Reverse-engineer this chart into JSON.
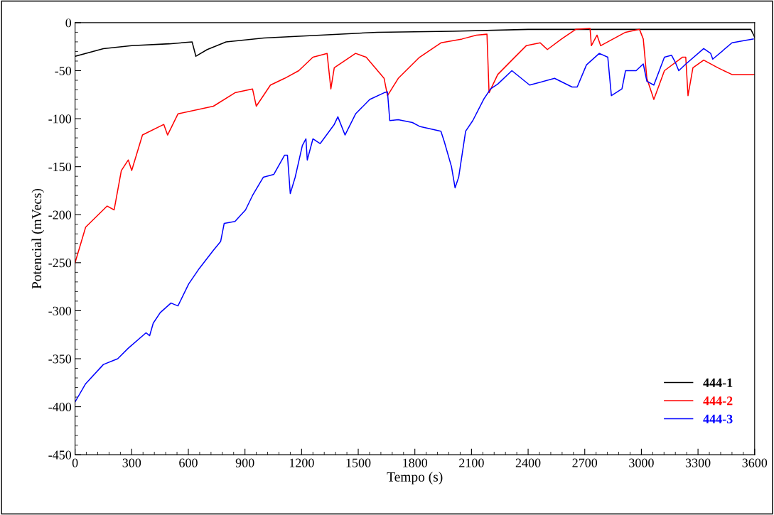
{
  "chart_data": {
    "type": "line",
    "xlabel": "Tempo (s)",
    "ylabel": "Potencial (mVecs)",
    "xlim": [
      0,
      3600
    ],
    "xticks": [
      0,
      300,
      600,
      900,
      1200,
      1500,
      1800,
      2100,
      2400,
      2700,
      3000,
      3300,
      3600
    ],
    "ylim": [
      -450,
      0
    ],
    "yticks": [
      -450,
      -400,
      -350,
      -300,
      -250,
      -200,
      -150,
      -100,
      -50,
      0
    ],
    "grid": false,
    "legend": "bottom right",
    "marker": "none",
    "line_style": "solid",
    "series": [
      {
        "name": "444-1",
        "color": "#000000",
        "x": [
          0,
          150,
          300,
          500,
          620,
          640,
          700,
          800,
          1000,
          1300,
          1600,
          2000,
          2400,
          3000,
          3580,
          3600
        ],
        "values": [
          -35,
          -27,
          -24,
          -22,
          -20,
          -35,
          -28,
          -20,
          -16,
          -13,
          -10,
          -9,
          -7,
          -7,
          -7,
          -15
        ]
      },
      {
        "name": "444-2",
        "color": "#ff0000",
        "x": [
          0,
          56,
          170,
          207,
          245,
          282,
          300,
          357,
          470,
          490,
          545,
          733,
          847,
          940,
          960,
          1035,
          1110,
          1185,
          1260,
          1335,
          1355,
          1373,
          1486,
          1542,
          1637,
          1655,
          1712,
          1825,
          1938,
          2050,
          2126,
          2182,
          2193,
          2239,
          2314,
          2390,
          2464,
          2502,
          2577,
          2652,
          2728,
          2735,
          2765,
          2784,
          2916,
          2990,
          3010,
          3029,
          3066,
          3122,
          3217,
          3235,
          3247,
          3273,
          3330,
          3405,
          3480,
          3600
        ],
        "values": [
          -250,
          -213,
          -191,
          -195,
          -154,
          -143,
          -154,
          -117,
          -106,
          -117,
          -95,
          -87,
          -73,
          -69,
          -87,
          -65,
          -58,
          -50,
          -36,
          -32,
          -69,
          -47,
          -32,
          -36,
          -58,
          -76,
          -58,
          -36,
          -21,
          -17,
          -13,
          -12,
          -73,
          -54,
          -39,
          -24,
          -21,
          -28,
          -17,
          -7,
          -6,
          -24,
          -13,
          -24,
          -10,
          -7,
          -17,
          -58,
          -80,
          -50,
          -36,
          -36,
          -76,
          -47,
          -39,
          -47,
          -54,
          -54
        ]
      },
      {
        "name": "444-3",
        "color": "#0000ff",
        "x": [
          0,
          56,
          150,
          226,
          282,
          376,
          395,
          414,
          451,
          508,
          545,
          602,
          658,
          733,
          771,
          790,
          847,
          903,
          940,
          997,
          1053,
          1110,
          1125,
          1140,
          1166,
          1204,
          1223,
          1230,
          1260,
          1298,
          1373,
          1392,
          1430,
          1486,
          1561,
          1637,
          1655,
          1667,
          1712,
          1787,
          1825,
          1938,
          1956,
          1994,
          2013,
          2032,
          2069,
          2107,
          2164,
          2201,
          2239,
          2314,
          2408,
          2540,
          2633,
          2660,
          2709,
          2777,
          2822,
          2841,
          2897,
          2916,
          2972,
          3010,
          3029,
          3066,
          3122,
          3160,
          3179,
          3198,
          3236,
          3330,
          3367,
          3378,
          3480,
          3537,
          3593
        ],
        "values": [
          -395,
          -376,
          -356,
          -350,
          -339,
          -323,
          -326,
          -313,
          -302,
          -292,
          -295,
          -272,
          -256,
          -237,
          -228,
          -209,
          -207,
          -195,
          -180,
          -161,
          -158,
          -138,
          -138,
          -178,
          -161,
          -128,
          -121,
          -143,
          -121,
          -126,
          -106,
          -98,
          -117,
          -95,
          -80,
          -73,
          -72,
          -102,
          -101,
          -104,
          -108,
          -113,
          -124,
          -150,
          -172,
          -161,
          -113,
          -102,
          -80,
          -69,
          -64,
          -50,
          -65,
          -58,
          -67,
          -67,
          -44,
          -32,
          -36,
          -76,
          -69,
          -50,
          -50,
          -43,
          -61,
          -65,
          -36,
          -34,
          -41,
          -50,
          -43,
          -27,
          -32,
          -38,
          -21,
          -19,
          -17
        ]
      }
    ]
  }
}
